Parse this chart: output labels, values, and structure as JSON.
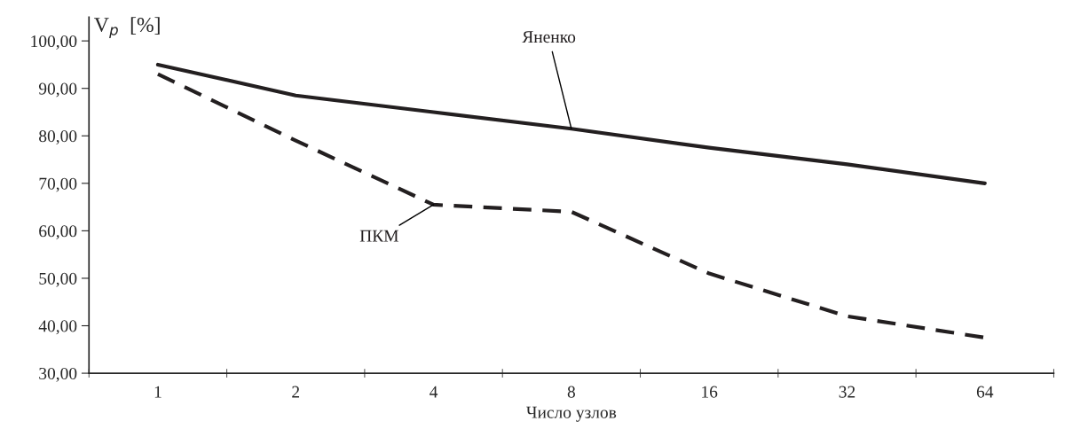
{
  "chart_data": {
    "type": "line",
    "xlabel": "Число узлов",
    "ylabel": "V$_{p}$  [%]",
    "categories": [
      "1",
      "2",
      "4",
      "8",
      "16",
      "32",
      "64"
    ],
    "series": [
      {
        "name": "Яненко",
        "color": "#231f20",
        "line_style": "solid",
        "values": [
          95,
          88.5,
          85,
          81.5,
          77.5,
          74,
          70
        ]
      },
      {
        "name": "ПКМ",
        "color": "#231f20",
        "line_style": "dashed",
        "values": [
          93,
          79,
          65.5,
          64,
          51,
          42,
          37.5
        ]
      }
    ],
    "ylim": [
      30,
      105
    ],
    "yticks": [
      {
        "value": 30,
        "label": "30,00"
      },
      {
        "value": 40,
        "label": "40,00"
      },
      {
        "value": 50,
        "label": "50,00"
      },
      {
        "value": 60,
        "label": "60,00"
      },
      {
        "value": 70,
        "label": "70,00"
      },
      {
        "value": 80,
        "label": "80,00"
      },
      {
        "value": 90,
        "label": "90,00"
      },
      {
        "value": 100,
        "label": "100,00"
      }
    ],
    "grid": false,
    "legend": false,
    "marker": "none"
  }
}
